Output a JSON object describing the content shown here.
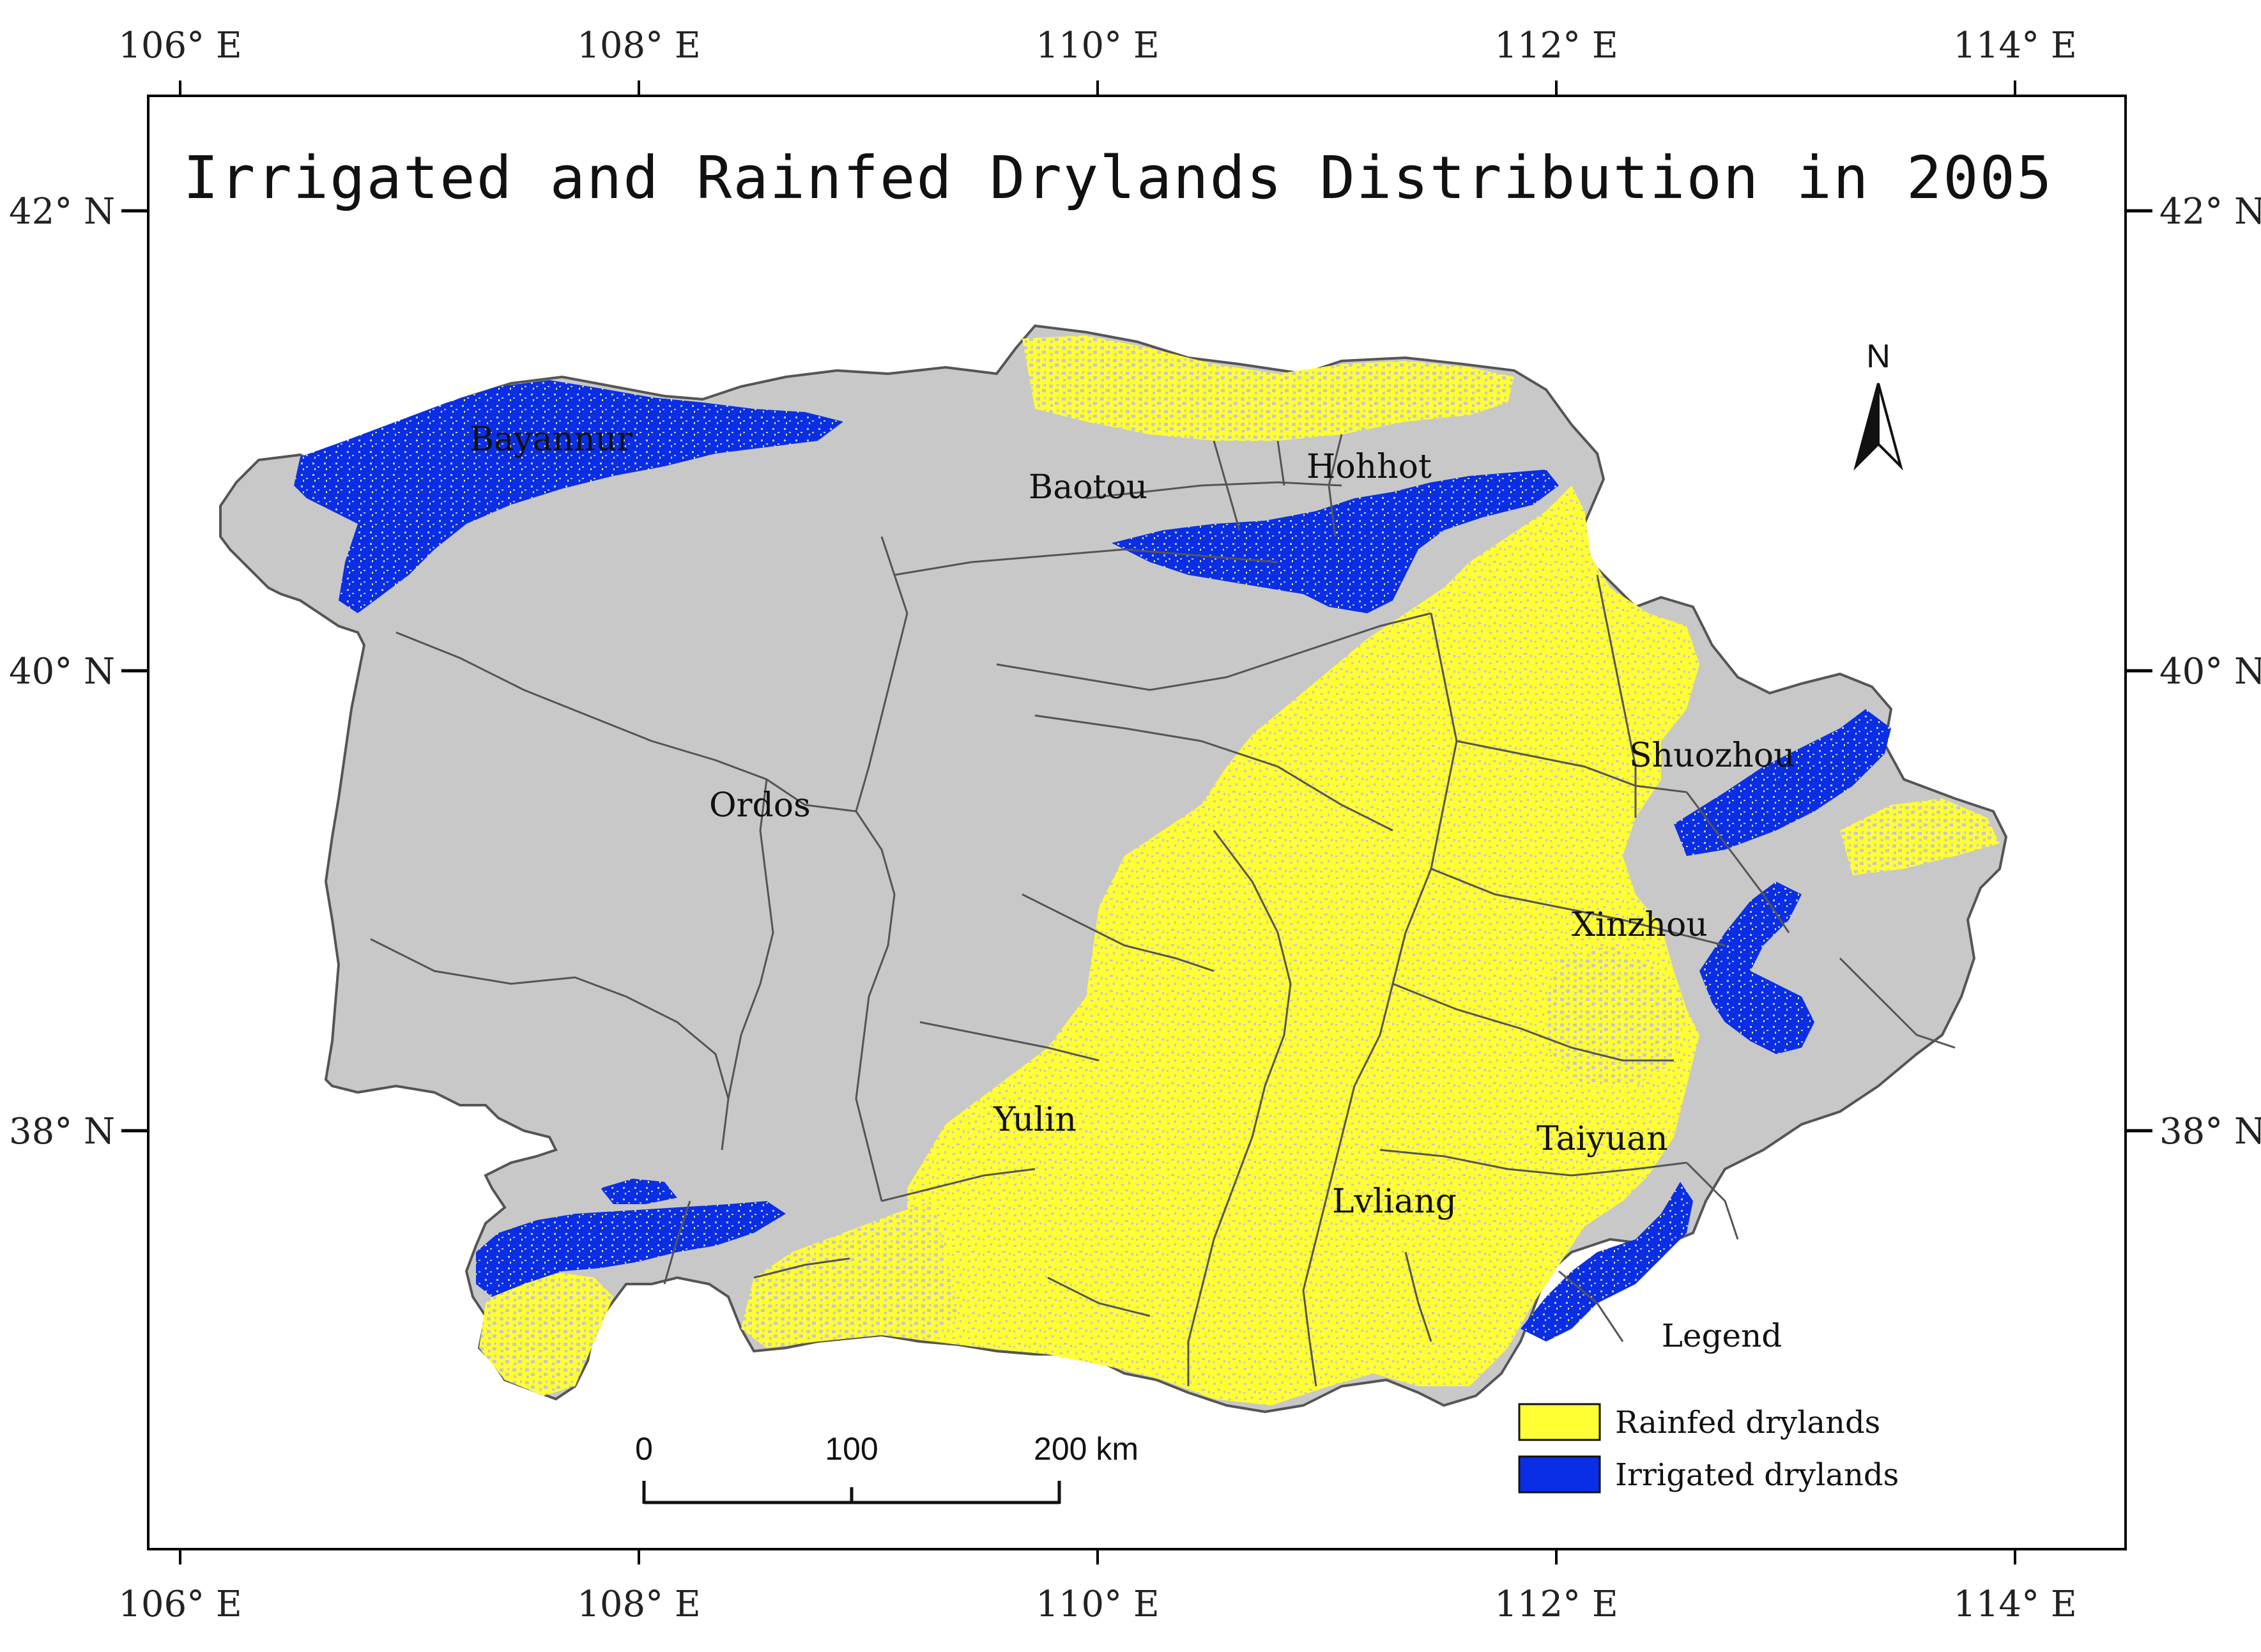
{
  "title": "Irrigated and Rainfed Drylands Distribution in 2005",
  "axes": {
    "lon_ticks": [
      "106° E",
      "108° E",
      "110° E",
      "112° E",
      "114° E"
    ],
    "lat_ticks": [
      "42° N",
      "40° N",
      "38° N"
    ]
  },
  "cities": [
    {
      "name": "Bayannur"
    },
    {
      "name": "Baotou"
    },
    {
      "name": "Hohhot"
    },
    {
      "name": "Ordos"
    },
    {
      "name": "Shuozhou"
    },
    {
      "name": "Xinzhou"
    },
    {
      "name": "Yulin"
    },
    {
      "name": "Taiyuan"
    },
    {
      "name": "Lvliang"
    }
  ],
  "north_arrow": {
    "label": "N",
    "icon": "north-arrow-icon"
  },
  "scale_bar": {
    "labels": [
      "0",
      "100",
      "200 km"
    ]
  },
  "legend": {
    "title": "Legend",
    "items": [
      {
        "label": "Rainfed drylands",
        "color": "#ffff33"
      },
      {
        "label": "Irrigated drylands",
        "color": "#0a2ee6"
      }
    ]
  },
  "colors": {
    "land": "#c8c8c8",
    "boundary": "#555555",
    "rainfed": "#ffff33",
    "irrigated": "#0a2ee6"
  }
}
